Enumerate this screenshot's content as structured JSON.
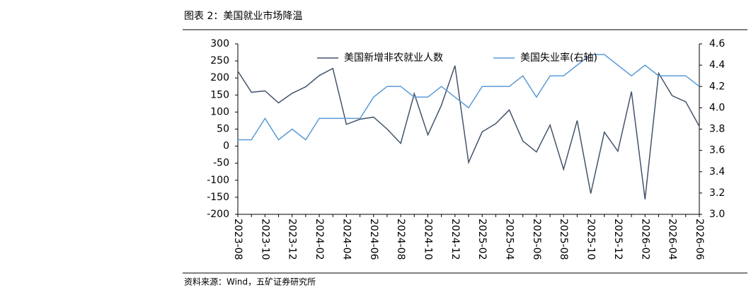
{
  "chart_data": {
    "type": "line",
    "title": "图表 2：美国就业市场降温",
    "source": "资料来源：Wind，五矿证券研究所",
    "categories": [
      "2023-08",
      null,
      "2023-10",
      null,
      "2023-12",
      null,
      "2024-02",
      null,
      "2024-04",
      null,
      "2024-06",
      null,
      "2024-08",
      null,
      "2024-10",
      null,
      "2024-12",
      null,
      "2025-02",
      null,
      "2025-04",
      null,
      "2025-06",
      null,
      "2025-08",
      null,
      "2025-10",
      null,
      "2025-12",
      null,
      "2026-02",
      null,
      "2026-04",
      null,
      "2026-06"
    ],
    "series": [
      {
        "name": "美国新增非农就业人数",
        "color": "#44546a",
        "values": [
          220,
          158,
          162,
          127,
          155,
          174,
          207,
          228,
          64,
          79,
          85,
          50,
          8,
          154,
          33,
          120,
          236,
          -48,
          42,
          66,
          106,
          15,
          -17,
          62,
          -68,
          75,
          -139,
          41,
          -15,
          160,
          -156,
          214,
          148,
          130,
          58
        ]
      },
      {
        "name": "美国失业率(右轴)",
        "color": "#5b9bd5",
        "axis": "y2",
        "values": [
          3.7,
          3.7,
          3.9,
          3.7,
          3.8,
          3.7,
          3.9,
          3.9,
          3.9,
          3.9,
          4.1,
          4.2,
          4.2,
          4.1,
          4.1,
          4.2,
          4.1,
          4.0,
          4.2,
          4.2,
          4.2,
          4.3,
          4.1,
          4.3,
          4.3,
          4.4,
          4.5,
          4.5,
          4.4,
          4.3,
          4.4,
          4.3,
          4.3,
          4.3,
          4.2
        ]
      }
    ],
    "ylim": [
      -200,
      300
    ],
    "yticks": [
      -200,
      -150,
      -100,
      -50,
      0,
      50,
      100,
      150,
      200,
      250,
      300
    ],
    "y2lim": [
      3.0,
      4.6
    ],
    "y2ticks": [
      {
        "value": 3,
        "label": "3.0"
      },
      3.2,
      3.4,
      3.6,
      3.8,
      {
        "value": 4,
        "label": "4.0"
      },
      4.2,
      4.4,
      4.6
    ],
    "legend": "top",
    "grid": false
  }
}
